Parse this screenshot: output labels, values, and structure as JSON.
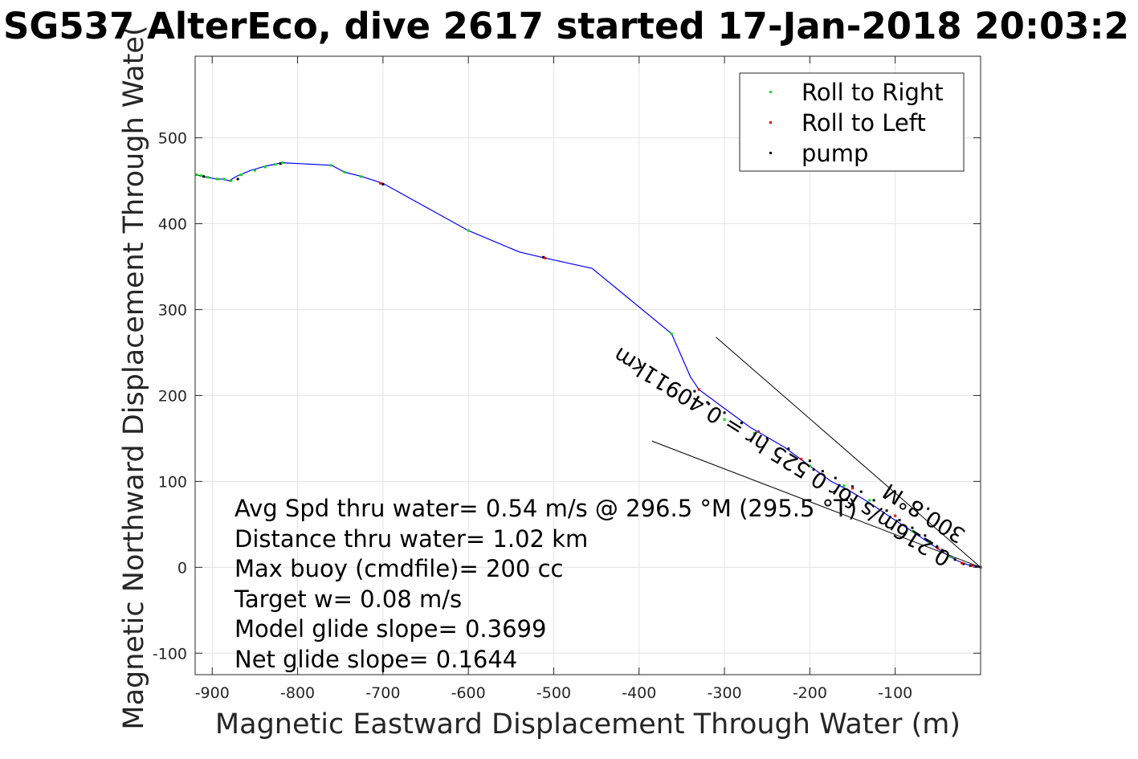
{
  "chart_data": {
    "type": "line",
    "title": "SG537 AlterEco, dive 2617 started 17-Jan-2018 20:03:2",
    "xlabel": "Magnetic Eastward Displacement Through Water (m)",
    "ylabel": "Magnetic Northward Displacement Through Wate(",
    "xlim": [
      -920,
      0
    ],
    "ylim": [
      -125,
      595
    ],
    "grid": true,
    "legend_position": "top-right",
    "x_ticks": [
      -900,
      -800,
      -700,
      -600,
      -500,
      -400,
      -300,
      -200,
      -100
    ],
    "x_tick_labels": [
      "-900",
      "-800",
      "-700",
      "-600",
      "-500",
      "-400",
      "-300",
      "-200",
      "-100"
    ],
    "y_ticks": [
      -100,
      0,
      100,
      200,
      300,
      400,
      500
    ],
    "y_tick_labels": [
      "-100",
      "0",
      "100",
      "200",
      "300",
      "400",
      "500"
    ],
    "legend": [
      {
        "label": "Roll to Right",
        "color": "#00dd00"
      },
      {
        "label": "Roll to Left",
        "color": "#ee0000"
      },
      {
        "label": "pump",
        "color": "#000000"
      }
    ],
    "series": [
      {
        "color": "#0000ff",
        "x": [
          -920,
          -915,
          -905,
          -895,
          -888,
          -880,
          -872,
          -865,
          -855,
          -845,
          -838,
          -828,
          -818,
          -760,
          -745,
          -725,
          -700,
          -600,
          -540,
          -510,
          -455,
          -362,
          -340,
          -330,
          -300,
          -270,
          -230,
          -200,
          -175,
          -155,
          -130,
          -105,
          -85,
          -70,
          -55,
          -40,
          -28,
          -15,
          -5,
          0
        ],
        "y": [
          457,
          456,
          454,
          452,
          452,
          450,
          455,
          458,
          462,
          465,
          467,
          469,
          471,
          468,
          460,
          455,
          447,
          392,
          367,
          360,
          348,
          272,
          222,
          207,
          185,
          163,
          140,
          118,
          100,
          90,
          75,
          58,
          45,
          35,
          25,
          15,
          8,
          3,
          1,
          0
        ]
      }
    ],
    "points": {
      "roll_right": {
        "x": [
          -918,
          -913,
          -905,
          -894,
          -886,
          -878,
          -866,
          -850,
          -838,
          -826,
          -818,
          -761,
          -745,
          -726,
          -600,
          -362,
          -300,
          -265,
          -200,
          -160,
          -130,
          -80,
          -60,
          -35
        ],
        "y": [
          457,
          456,
          454,
          452,
          452,
          450,
          457,
          462,
          466,
          469,
          471,
          468,
          460,
          455,
          392,
          272,
          172,
          156,
          118,
          95,
          78,
          42,
          30,
          12
        ]
      },
      "roll_left": {
        "x": [
          -703,
          -510,
          -330,
          -260,
          -210,
          -150,
          -100,
          -50,
          -22,
          -10,
          0
        ],
        "y": [
          447,
          360,
          207,
          158,
          126,
          92,
          60,
          22,
          5,
          2,
          0
        ]
      },
      "pump": {
        "x": [
          -910,
          -870,
          -820,
          -700,
          -512,
          -335,
          -320,
          -300,
          -280,
          -250,
          -225,
          -200,
          -185,
          -170,
          -150,
          -140,
          -125,
          -110,
          -95,
          -80,
          -65,
          -45,
          -30,
          -20,
          -12,
          -5
        ],
        "y": [
          455,
          452,
          470,
          446,
          361,
          205,
          192,
          180,
          168,
          150,
          138,
          124,
          112,
          104,
          94,
          88,
          78,
          66,
          55,
          46,
          37,
          20,
          9,
          4,
          2,
          1
        ]
      }
    },
    "lines": [
      {
        "x": [
          -310,
          0
        ],
        "y": [
          268,
          0
        ],
        "color": "#000000"
      },
      {
        "x": [
          -385,
          0
        ],
        "y": [
          147,
          0
        ],
        "color": "#000000"
      }
    ],
    "annotations": [
      "Avg Spd thru water=  0.54 m/s @ 296.5 °M (295.5 °T)",
      "Distance thru water=  1.02 km",
      "Max buoy (cmdfile)= 200 cc",
      "Target w= 0.08 m/s",
      "Model glide slope= 0.3699",
      "Net glide slope= 0.1644"
    ],
    "rotated_annotations": [
      "0.216m/s for 0.525 hr = 0.40911km",
      "300.8°M"
    ]
  }
}
